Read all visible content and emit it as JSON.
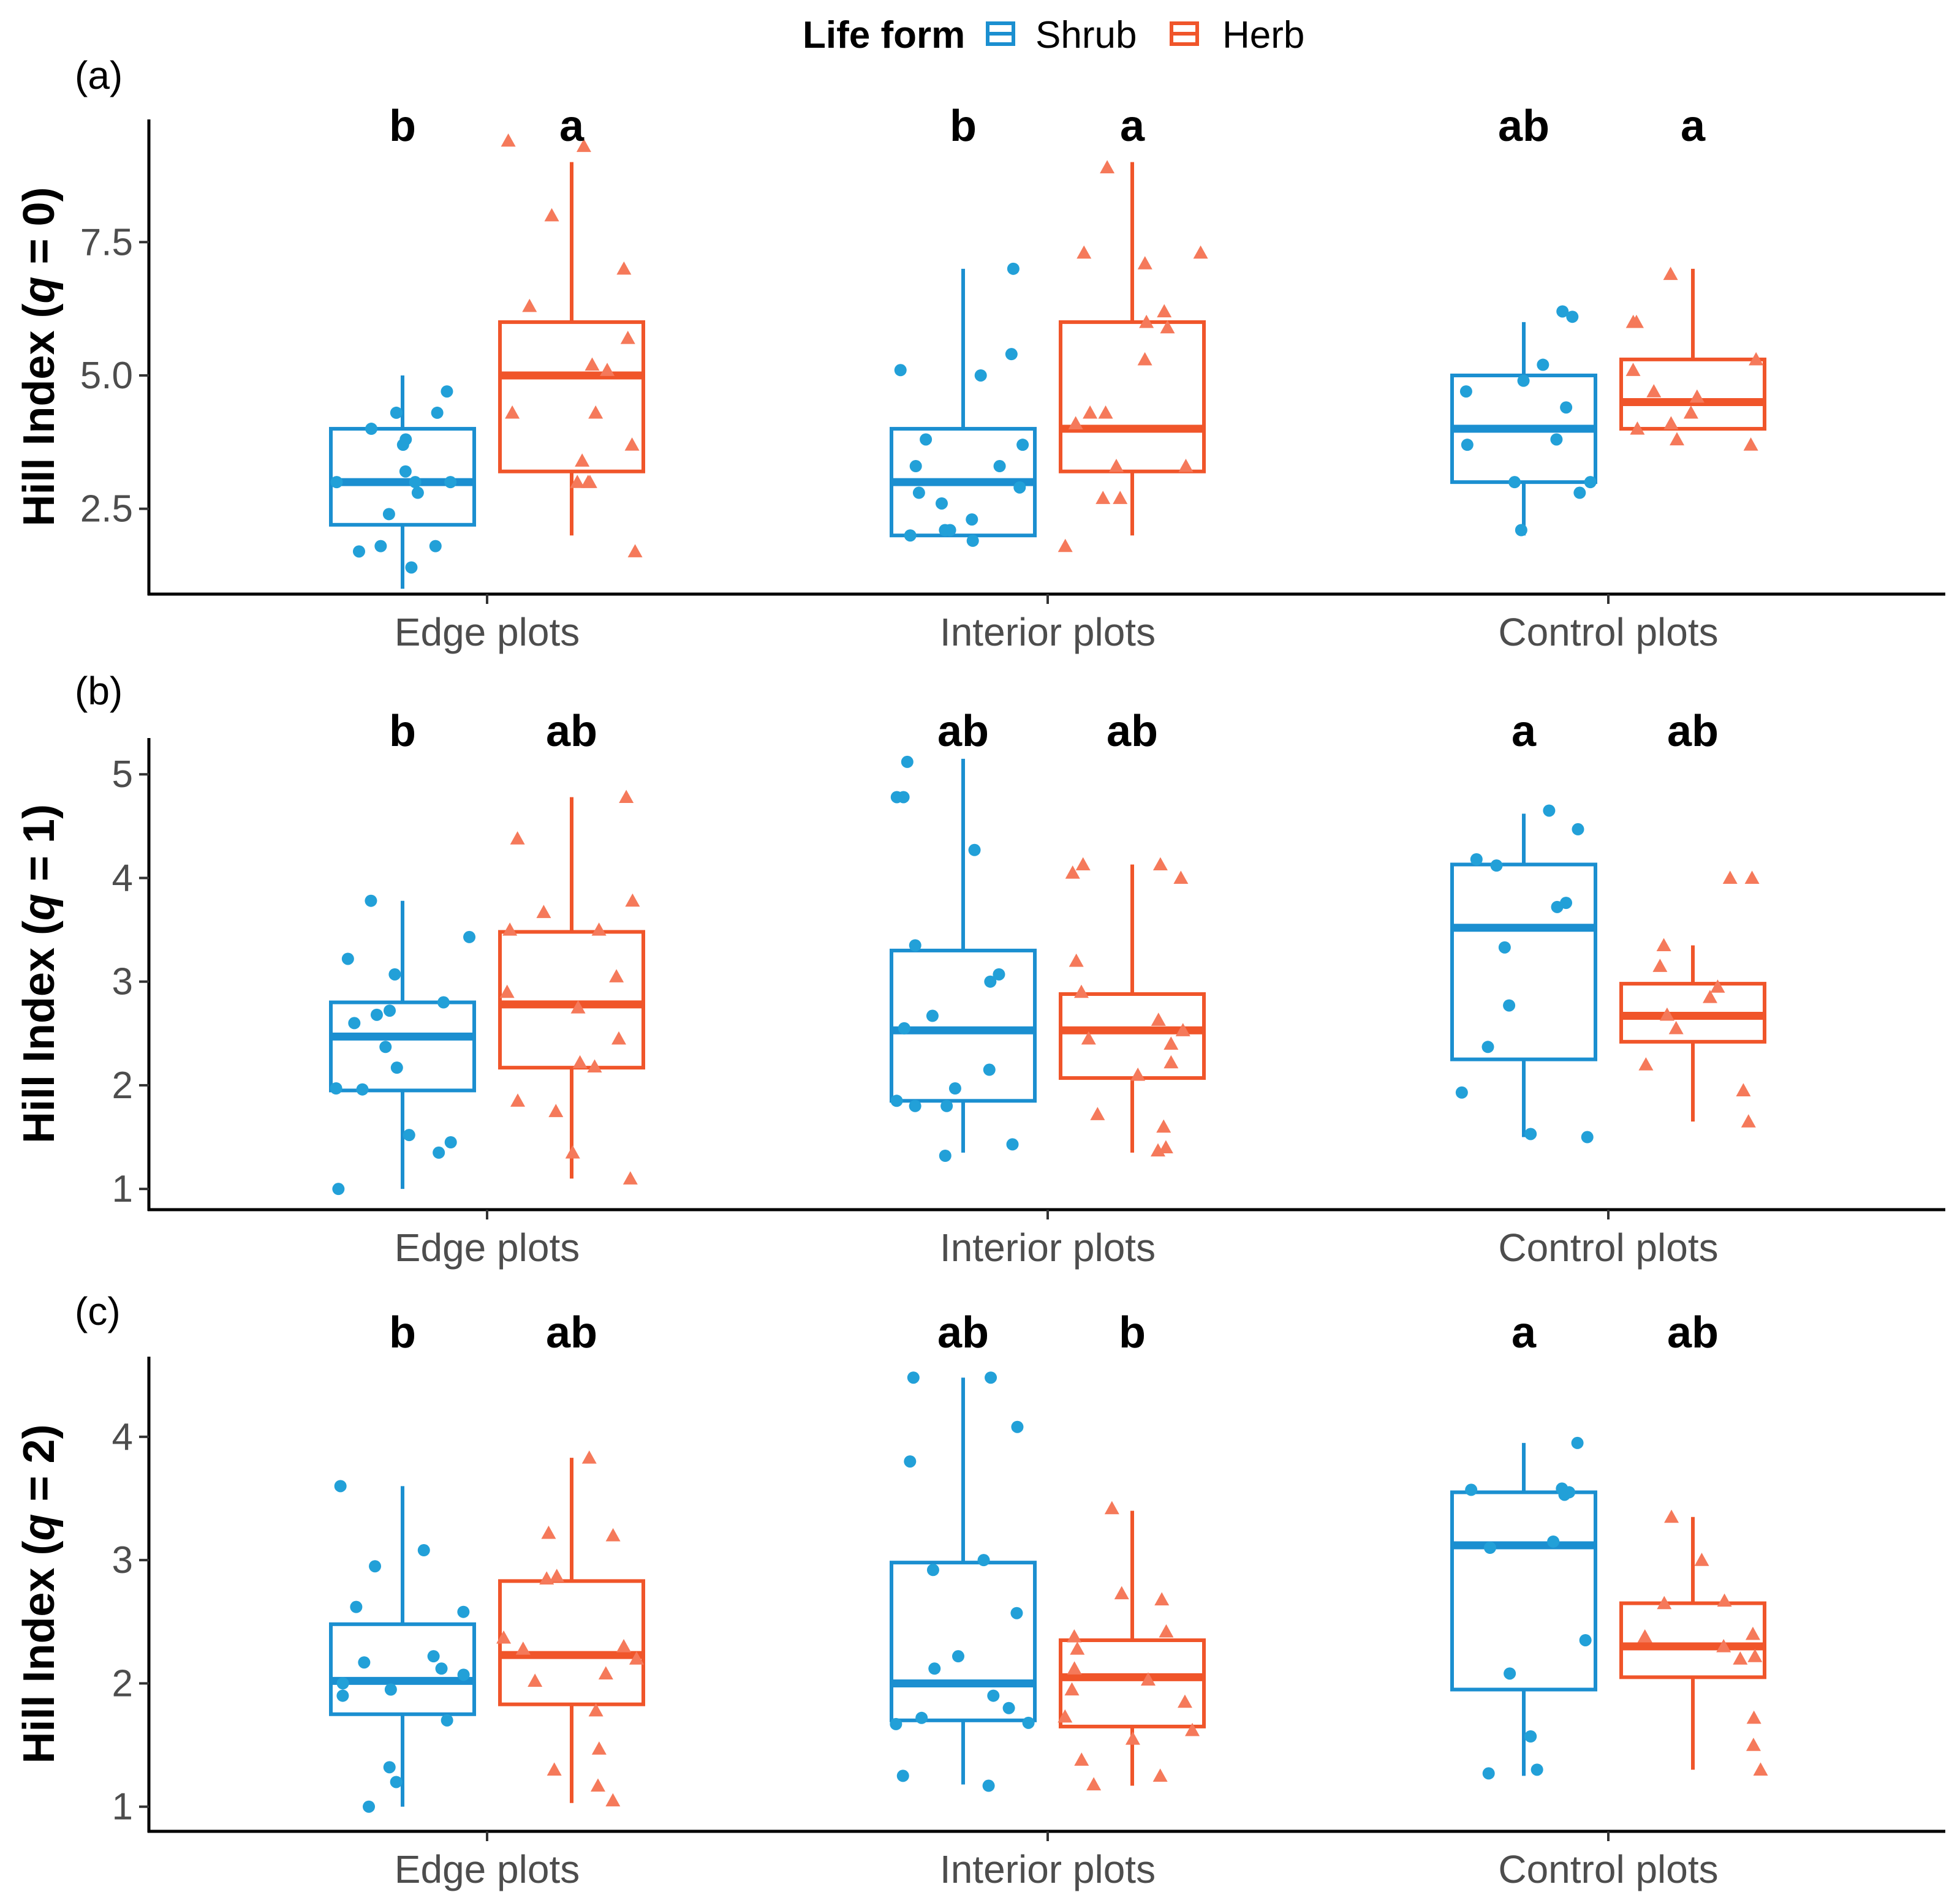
{
  "chart_data": {
    "type": "boxplot",
    "legend": {
      "title": "Life form",
      "position": "top",
      "entries": [
        {
          "name": "Shrub",
          "color": "#1b8fd0"
        },
        {
          "name": "Herb",
          "color": "#f0552a"
        }
      ]
    },
    "categories": [
      "Edge plots",
      "Interior plots",
      "Control plots"
    ],
    "panels": [
      {
        "tag": "(a)",
        "ylabel_prefix": "Hill Index (",
        "ylabel_q": "q",
        "ylabel_suffix": " = 0)",
        "ylim": [
          0.9,
          9.8
        ],
        "yticks": [
          2.5,
          5.0,
          7.5
        ],
        "ytick_labels": [
          "2.5",
          "5.0",
          "7.5"
        ],
        "series": [
          {
            "name": "Shrub",
            "boxes": [
              {
                "min": 1.0,
                "q1": 2.2,
                "median": 3.0,
                "q3": 4.0,
                "max": 5.0
              },
              {
                "min": 2.0,
                "q1": 2.0,
                "median": 3.0,
                "q3": 4.0,
                "max": 7.0
              },
              {
                "min": 2.0,
                "q1": 3.0,
                "median": 4.0,
                "q3": 5.0,
                "max": 6.0
              }
            ],
            "letters": [
              "b",
              "b",
              "ab"
            ],
            "points": [
              [
                1.7,
                1.8,
                1.4,
                4.3,
                4.0,
                4.7,
                4.3,
                3.7,
                3.8,
                3.2,
                3.0,
                3.0,
                2.8,
                2.4,
                3.0,
                1.8
              ],
              [
                7.0,
                5.4,
                5.1,
                5.0,
                3.7,
                3.8,
                3.3,
                3.3,
                2.9,
                2.8,
                2.6,
                2.3,
                2.1,
                2.1,
                1.9,
                2.0
              ],
              [
                6.2,
                6.1,
                5.2,
                4.7,
                4.9,
                4.4,
                3.8,
                3.7,
                3.0,
                3.0,
                2.8,
                2.1
              ]
            ]
          },
          {
            "name": "Herb",
            "boxes": [
              {
                "min": 2.0,
                "q1": 3.2,
                "median": 5.0,
                "q3": 6.0,
                "max": 9.0
              },
              {
                "min": 2.0,
                "q1": 3.2,
                "median": 4.0,
                "q3": 6.0,
                "max": 9.0
              },
              {
                "min": 4.0,
                "q1": 4.0,
                "median": 4.5,
                "q3": 5.3,
                "max": 7.0
              }
            ],
            "letters": [
              "a",
              "a",
              "a"
            ],
            "points": [
              [
                9.3,
                9.4,
                8.0,
                7.0,
                6.3,
                5.7,
                5.2,
                5.1,
                4.3,
                4.3,
                3.7,
                3.4,
                3.0,
                3.0,
                3.0,
                1.7
              ],
              [
                8.9,
                7.3,
                7.3,
                7.1,
                6.2,
                6.0,
                5.9,
                5.3,
                4.3,
                4.3,
                4.1,
                3.3,
                3.3,
                2.7,
                2.7,
                1.8
              ],
              [
                6.9,
                6.0,
                6.0,
                5.3,
                5.1,
                4.7,
                4.6,
                4.3,
                4.1,
                4.0,
                3.8,
                3.7
              ]
            ]
          }
        ]
      },
      {
        "tag": "(b)",
        "ylabel_prefix": "Hill Index (",
        "ylabel_q": "q",
        "ylabel_suffix": " = 1)",
        "ylim": [
          0.8,
          5.35
        ],
        "yticks": [
          1,
          2,
          3,
          4,
          5
        ],
        "ytick_labels": [
          "1",
          "2",
          "3",
          "4",
          "5"
        ],
        "series": [
          {
            "name": "Shrub",
            "boxes": [
              {
                "min": 1.0,
                "q1": 1.95,
                "median": 2.47,
                "q3": 2.8,
                "max": 3.78
              },
              {
                "min": 1.35,
                "q1": 1.85,
                "median": 2.53,
                "q3": 3.3,
                "max": 5.15
              },
              {
                "min": 1.5,
                "q1": 2.25,
                "median": 3.52,
                "q3": 4.13,
                "max": 4.62
              }
            ],
            "letters": [
              "b",
              "ab",
              "a"
            ],
            "points": [
              [
                3.78,
                3.43,
                3.22,
                3.07,
                2.8,
                2.72,
                2.68,
                2.6,
                2.37,
                2.17,
                1.97,
                1.96,
                1.52,
                1.45,
                1.35,
                1.0
              ],
              [
                5.12,
                4.78,
                4.78,
                4.27,
                3.35,
                3.07,
                3.0,
                2.67,
                2.55,
                2.15,
                1.97,
                1.85,
                1.8,
                1.8,
                1.43,
                1.32
              ],
              [
                4.65,
                4.47,
                4.18,
                4.12,
                3.76,
                3.72,
                3.33,
                2.77,
                2.37,
                1.93,
                1.53,
                1.5
              ]
            ]
          },
          {
            "name": "Herb",
            "boxes": [
              {
                "min": 1.1,
                "q1": 2.17,
                "median": 2.78,
                "q3": 3.48,
                "max": 4.78
              },
              {
                "min": 1.35,
                "q1": 2.07,
                "median": 2.53,
                "q3": 2.88,
                "max": 4.13
              },
              {
                "min": 1.65,
                "q1": 2.42,
                "median": 2.67,
                "q3": 2.98,
                "max": 3.35
              }
            ],
            "letters": [
              "ab",
              "ab",
              "ab"
            ],
            "points": [
              [
                4.78,
                4.38,
                3.78,
                3.67,
                3.5,
                3.5,
                3.05,
                2.9,
                2.75,
                2.45,
                2.22,
                1.85,
                1.75,
                1.35,
                1.1,
                2.18
              ],
              [
                4.13,
                4.13,
                4.05,
                4.0,
                3.2,
                2.9,
                2.63,
                2.53,
                2.45,
                2.4,
                2.22,
                2.1,
                1.72,
                1.6,
                1.4,
                1.37
              ],
              [
                4.0,
                4.0,
                3.35,
                3.15,
                2.95,
                2.85,
                2.68,
                2.55,
                2.2,
                1.95,
                1.65
              ]
            ]
          }
        ]
      },
      {
        "tag": "(c)",
        "ylabel_prefix": "Hill Index (",
        "ylabel_q": "q",
        "ylabel_suffix": " = 2)",
        "ylim": [
          0.8,
          4.65
        ],
        "yticks": [
          1,
          2,
          3,
          4
        ],
        "ytick_labels": [
          "1",
          "2",
          "3",
          "4"
        ],
        "series": [
          {
            "name": "Shrub",
            "boxes": [
              {
                "min": 1.0,
                "q1": 1.75,
                "median": 2.02,
                "q3": 2.48,
                "max": 3.6
              },
              {
                "min": 1.18,
                "q1": 1.7,
                "median": 2.0,
                "q3": 2.98,
                "max": 4.48
              },
              {
                "min": 1.25,
                "q1": 1.95,
                "median": 3.12,
                "q3": 3.55,
                "max": 3.95
              }
            ],
            "letters": [
              "b",
              "ab",
              "a"
            ],
            "points": [
              [
                3.6,
                3.08,
                2.95,
                2.62,
                2.58,
                2.22,
                2.17,
                2.12,
                2.07,
                2.0,
                1.95,
                1.9,
                1.7,
                1.32,
                1.2,
                1.0
              ],
              [
                4.48,
                4.48,
                4.08,
                3.8,
                3.0,
                2.92,
                2.57,
                2.22,
                2.12,
                1.9,
                1.8,
                1.72,
                1.68,
                1.67,
                1.25,
                1.17
              ],
              [
                3.95,
                3.58,
                3.57,
                3.53,
                3.55,
                3.15,
                3.1,
                2.35,
                2.08,
                1.57,
                1.3,
                1.27
              ]
            ]
          },
          {
            "name": "Herb",
            "boxes": [
              {
                "min": 1.03,
                "q1": 1.83,
                "median": 2.23,
                "q3": 2.83,
                "max": 3.83
              },
              {
                "min": 1.17,
                "q1": 1.65,
                "median": 2.05,
                "q3": 2.35,
                "max": 3.4
              },
              {
                "min": 1.3,
                "q1": 2.05,
                "median": 2.3,
                "q3": 2.65,
                "max": 3.35
              }
            ],
            "letters": [
              "ab",
              "b",
              "ab"
            ],
            "points": [
              [
                3.83,
                3.22,
                3.2,
                2.87,
                2.85,
                2.37,
                2.28,
                2.2,
                2.08,
                2.02,
                1.78,
                1.47,
                1.3,
                1.17,
                1.05,
                2.3
              ],
              [
                3.42,
                2.73,
                2.68,
                2.42,
                2.38,
                2.28,
                2.12,
                2.03,
                1.95,
                1.85,
                1.73,
                1.62,
                1.55,
                1.38,
                1.25,
                1.18
              ],
              [
                3.35,
                3.0,
                2.67,
                2.65,
                2.4,
                2.38,
                2.3,
                2.22,
                2.2,
                1.72,
                1.5,
                1.3
              ]
            ]
          }
        ]
      }
    ]
  }
}
